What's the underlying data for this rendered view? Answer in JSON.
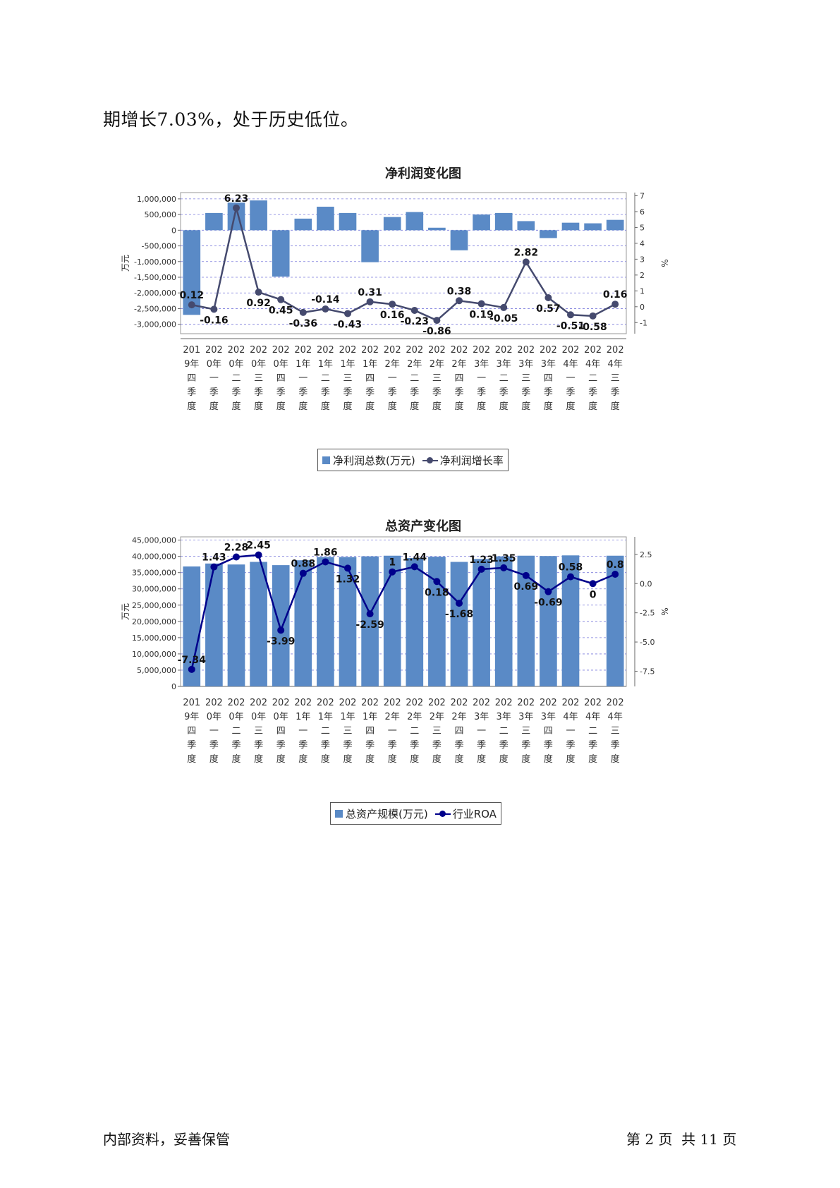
{
  "intro_text": "期增长7.03%，处于历史低位。",
  "charts": [
    {
      "id": "net-profit",
      "title": "净利润变化图",
      "type": "bar+line",
      "categories": [
        "2019年四季度",
        "2020年一季度",
        "2020年二季度",
        "2020年三季度",
        "2020年四季度",
        "2021年一季度",
        "2021年二季度",
        "2021年三季度",
        "2021年四季度",
        "2022年一季度",
        "2022年二季度",
        "2022年三季度",
        "2022年四季度",
        "2023年一季度",
        "2023年二季度",
        "2023年三季度",
        "2023年四季度",
        "2024年一季度",
        "2024年二季度",
        "2024年三季度"
      ],
      "bar_series": {
        "name": "净利润总数(万元)",
        "color": "#5a8ac6",
        "values": [
          -2700000,
          550000,
          880000,
          950000,
          -1480000,
          370000,
          750000,
          550000,
          -1020000,
          420000,
          580000,
          80000,
          -640000,
          500000,
          550000,
          290000,
          -250000,
          240000,
          220000,
          330000
        ]
      },
      "line_series": {
        "name": "净利润增长率",
        "color": "#454a6e",
        "values": [
          0.12,
          -0.16,
          6.23,
          0.92,
          0.45,
          -0.36,
          -0.14,
          -0.43,
          0.31,
          0.16,
          -0.23,
          -0.86,
          0.38,
          0.19,
          -0.05,
          2.82,
          0.57,
          -0.51,
          -0.58,
          0.16
        ]
      },
      "y_left": {
        "label": "万元",
        "min": -3300000,
        "max": 1200000,
        "ticks": [
          1000000,
          500000,
          0,
          -500000,
          -1000000,
          -1500000,
          -2000000,
          -2500000,
          -3000000
        ],
        "tick_labels": [
          "1,000,000",
          "500,000",
          "0",
          "-500,000",
          "-1,000,000",
          "-1,500,000",
          "-2,000,000",
          "-2,500,000",
          "-3,000,000"
        ]
      },
      "y_right": {
        "label": "%",
        "min": -1.7,
        "max": 7.2,
        "ticks": [
          7,
          6,
          5,
          4,
          3,
          2,
          1,
          0,
          -1
        ],
        "tick_labels": [
          "7",
          "6",
          "5",
          "4",
          "3",
          "2",
          "1",
          "0",
          "-1"
        ]
      },
      "grid": true,
      "legend_position": "bottom"
    },
    {
      "id": "total-assets",
      "title": "总资产变化图",
      "type": "bar+line",
      "categories": [
        "2019年四季度",
        "2020年一季度",
        "2020年二季度",
        "2020年三季度",
        "2020年四季度",
        "2021年一季度",
        "2021年二季度",
        "2021年三季度",
        "2021年四季度",
        "2022年一季度",
        "2022年二季度",
        "2022年三季度",
        "2022年四季度",
        "2023年一季度",
        "2023年二季度",
        "2023年三季度",
        "2023年四季度",
        "2024年一季度",
        "2024年二季度",
        "2024年三季度"
      ],
      "bar_series": {
        "name": "总资产规模(万元)",
        "color": "#5a8ac6",
        "values": [
          36900000,
          37800000,
          37500000,
          38300000,
          37300000,
          38800000,
          39800000,
          39800000,
          40000000,
          40200000,
          39500000,
          39900000,
          38300000,
          39200000,
          40000000,
          40200000,
          40100000,
          40300000,
          0,
          40200000
        ]
      },
      "line_series": {
        "name": "行业ROA",
        "color": "#00008b",
        "values": [
          -7.34,
          1.43,
          2.28,
          2.45,
          -3.99,
          0.88,
          1.86,
          1.32,
          -2.59,
          1,
          1.44,
          0.18,
          -1.68,
          1.23,
          1.35,
          0.69,
          -0.69,
          0.58,
          0,
          0.8
        ]
      },
      "y_left": {
        "label": "万元",
        "min": 0,
        "max": 46000000,
        "ticks": [
          45000000,
          40000000,
          35000000,
          30000000,
          25000000,
          20000000,
          15000000,
          10000000,
          5000000,
          0
        ],
        "tick_labels": [
          "45,000,000",
          "40,000,000",
          "35,000,000",
          "30,000,000",
          "25,000,000",
          "20,000,000",
          "15,000,000",
          "10,000,000",
          "5,000,000",
          "0"
        ]
      },
      "y_right": {
        "label": "%",
        "min": -8.8,
        "max": 4.0,
        "ticks": [
          2.5,
          0,
          -2.5,
          -5,
          -7.5
        ],
        "tick_labels": [
          "2.5",
          "0.0",
          "-2.5",
          "-5.0",
          "-7.5"
        ]
      },
      "grid": true,
      "legend_position": "bottom"
    }
  ],
  "footer": {
    "left": "内部资料，妥善保管",
    "right": "第 2 页  共 11 页"
  }
}
